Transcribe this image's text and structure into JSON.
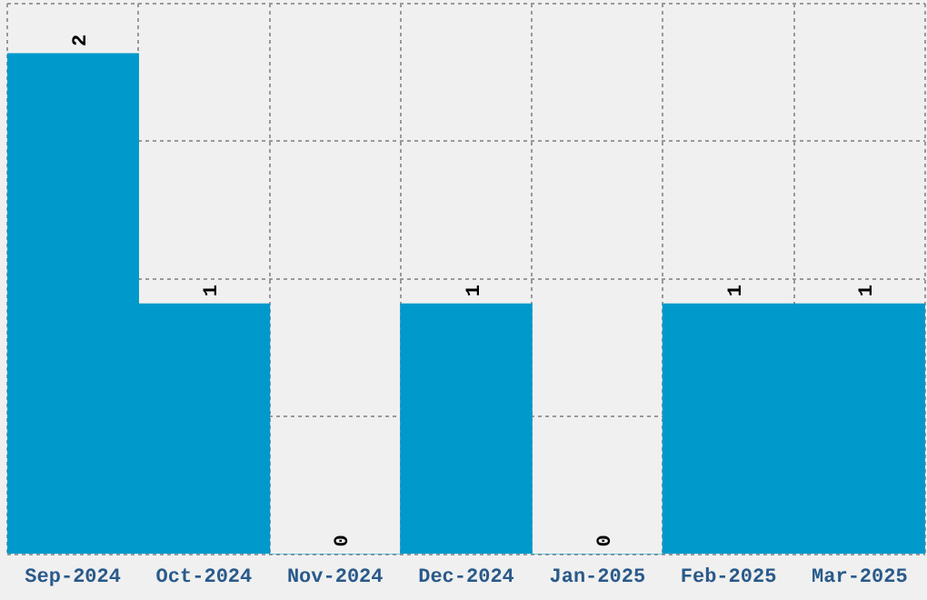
{
  "chart_data": {
    "type": "bar",
    "categories": [
      "Sep-2024",
      "Oct-2024",
      "Nov-2024",
      "Dec-2024",
      "Jan-2025",
      "Feb-2025",
      "Mar-2025"
    ],
    "values": [
      2,
      1,
      0,
      1,
      0,
      1,
      1
    ],
    "color": "#0099cc",
    "ylim": [
      0,
      2.2
    ],
    "yticks": [
      {
        "value": 0,
        "label": null
      },
      {
        "value": 0.55,
        "label": null
      },
      {
        "value": 1.1,
        "label": null
      },
      {
        "value": 1.65,
        "label": null
      },
      {
        "value": 2.2,
        "label": null
      }
    ],
    "grid": true,
    "data_labels": true,
    "tick_labels": "x"
  }
}
